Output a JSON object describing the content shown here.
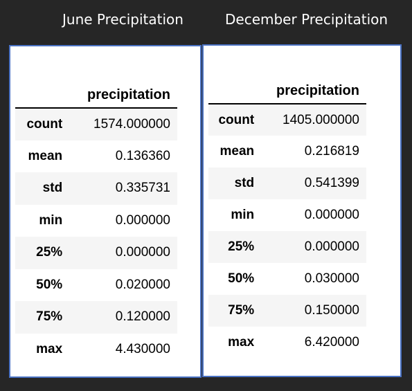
{
  "june": {
    "title": "June Precipitation",
    "column": "precipitation",
    "rows": [
      {
        "stat": "count",
        "value": "1574.000000"
      },
      {
        "stat": "mean",
        "value": "0.136360"
      },
      {
        "stat": "std",
        "value": "0.335731"
      },
      {
        "stat": "min",
        "value": "0.000000"
      },
      {
        "stat": "25%",
        "value": "0.000000"
      },
      {
        "stat": "50%",
        "value": "0.020000"
      },
      {
        "stat": "75%",
        "value": "0.120000"
      },
      {
        "stat": "max",
        "value": "4.430000"
      }
    ]
  },
  "december": {
    "title": "December Precipitation",
    "column": "precipitation",
    "rows": [
      {
        "stat": "count",
        "value": "1405.000000"
      },
      {
        "stat": "mean",
        "value": "0.216819"
      },
      {
        "stat": "std",
        "value": "0.541399"
      },
      {
        "stat": "min",
        "value": "0.000000"
      },
      {
        "stat": "25%",
        "value": "0.000000"
      },
      {
        "stat": "50%",
        "value": "0.030000"
      },
      {
        "stat": "75%",
        "value": "0.150000"
      },
      {
        "stat": "max",
        "value": "6.420000"
      }
    ]
  }
}
